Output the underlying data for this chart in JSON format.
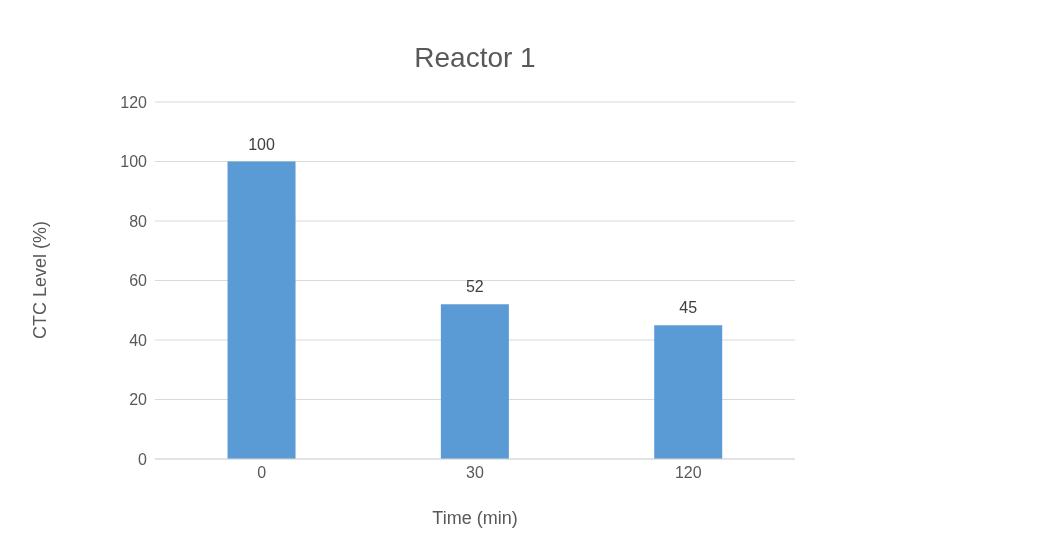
{
  "chart_data": {
    "type": "bar",
    "title": "Reactor 1",
    "xlabel": "Time (min)",
    "ylabel": "CTC Level (%)",
    "categories": [
      "0",
      "30",
      "120"
    ],
    "values": [
      100,
      52,
      45
    ],
    "color": "#5b9bd5",
    "ylim": [
      0,
      120
    ],
    "yticks": [
      0,
      20,
      40,
      60,
      80,
      100,
      120
    ],
    "grid": "y",
    "data_labels": true
  }
}
